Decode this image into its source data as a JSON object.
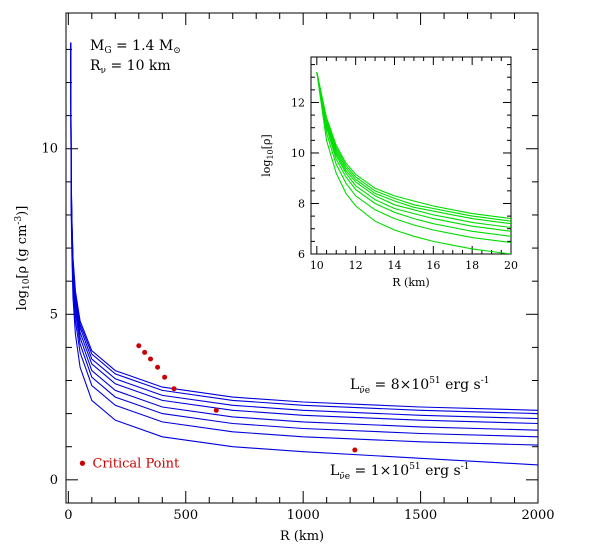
{
  "chart_data": [
    {
      "type": "line",
      "title": "",
      "xlabel": "R (km)",
      "ylabel": "log10[ρ (g cm-3)]",
      "xlim": [
        -10,
        2000
      ],
      "ylim": [
        -0.7,
        14.1
      ],
      "x_ticks": [
        "0",
        "500",
        "1000",
        "1500",
        "2000"
      ],
      "y_ticks": [
        "0",
        "5",
        "10"
      ],
      "x_tick_values": [
        0,
        500,
        1000,
        1500,
        2000
      ],
      "y_tick_values": [
        0,
        5,
        10
      ],
      "line_color": "#0000dd",
      "annotations": {
        "mass": "MG = 1.4 M⊙",
        "radius": "Rν = 10 km",
        "top_lum": "Lν̄e = 8×10⁵¹ erg s⁻¹",
        "bottom_lum": "Lν̄e = 1×10⁵¹ erg s⁻¹",
        "critical_point_label": "Critical Point"
      },
      "legend_marker_color": "#cc0000",
      "series": [
        {
          "x": [
            10,
            12,
            15,
            20,
            30,
            50,
            100,
            200,
            400,
            700,
            1000,
            1500,
            2000
          ],
          "values": [
            13.2,
            9.1,
            7.9,
            6.7,
            5.7,
            4.8,
            3.9,
            3.3,
            2.8,
            2.5,
            2.35,
            2.2,
            2.1
          ]
        },
        {
          "x": [
            10,
            12,
            15,
            20,
            30,
            50,
            100,
            200,
            400,
            700,
            1000,
            1500,
            2000
          ],
          "values": [
            13.2,
            9.0,
            7.8,
            6.6,
            5.6,
            4.7,
            3.8,
            3.2,
            2.7,
            2.4,
            2.25,
            2.1,
            2.0
          ]
        },
        {
          "x": [
            10,
            12,
            15,
            20,
            30,
            50,
            100,
            200,
            400,
            700,
            1000,
            1500,
            2000
          ],
          "values": [
            13.2,
            8.9,
            7.7,
            6.5,
            5.5,
            4.6,
            3.65,
            3.05,
            2.55,
            2.25,
            2.1,
            1.95,
            1.85
          ]
        },
        {
          "x": [
            10,
            12,
            15,
            20,
            30,
            50,
            100,
            200,
            400,
            700,
            1000,
            1500,
            2000
          ],
          "values": [
            13.2,
            8.8,
            7.6,
            6.4,
            5.4,
            4.45,
            3.5,
            2.9,
            2.4,
            2.1,
            1.95,
            1.8,
            1.7
          ]
        },
        {
          "x": [
            10,
            12,
            15,
            20,
            30,
            50,
            100,
            200,
            400,
            700,
            1000,
            1500,
            2000
          ],
          "values": [
            13.2,
            8.7,
            7.5,
            6.3,
            5.25,
            4.3,
            3.3,
            2.7,
            2.2,
            1.9,
            1.75,
            1.6,
            1.5
          ]
        },
        {
          "x": [
            10,
            12,
            15,
            20,
            30,
            50,
            100,
            200,
            400,
            700,
            1000,
            1500,
            2000
          ],
          "values": [
            13.2,
            8.6,
            7.3,
            6.1,
            5.05,
            4.1,
            3.1,
            2.5,
            2.0,
            1.7,
            1.55,
            1.4,
            1.3
          ]
        },
        {
          "x": [
            10,
            12,
            15,
            20,
            30,
            50,
            100,
            200,
            400,
            700,
            1000,
            1500,
            2000
          ],
          "values": [
            13.2,
            8.4,
            7.1,
            5.9,
            4.8,
            3.85,
            2.85,
            2.25,
            1.75,
            1.45,
            1.3,
            1.15,
            1.05
          ]
        },
        {
          "x": [
            10,
            12,
            15,
            20,
            30,
            50,
            100,
            200,
            400,
            700,
            1000,
            1500,
            2000
          ],
          "values": [
            13.2,
            8.1,
            6.8,
            5.5,
            4.4,
            3.4,
            2.4,
            1.8,
            1.3,
            1.0,
            0.85,
            0.65,
            0.45
          ]
        }
      ],
      "critical_points": [
        {
          "x": 300,
          "y": 4.05
        },
        {
          "x": 325,
          "y": 3.85
        },
        {
          "x": 350,
          "y": 3.65
        },
        {
          "x": 380,
          "y": 3.4
        },
        {
          "x": 410,
          "y": 3.1
        },
        {
          "x": 450,
          "y": 2.75
        },
        {
          "x": 630,
          "y": 2.1
        },
        {
          "x": 1220,
          "y": 0.9
        }
      ],
      "legend_marker": {
        "x": 60,
        "y": 0.5
      }
    },
    {
      "type": "line",
      "title": "",
      "xlabel": "R (km)",
      "ylabel": "log10[ρ]",
      "xlim": [
        9.7,
        20
      ],
      "ylim": [
        6,
        13.8
      ],
      "x_ticks": [
        "10",
        "12",
        "14",
        "16",
        "18",
        "20"
      ],
      "y_ticks": [
        "6",
        "8",
        "10",
        "12"
      ],
      "x_tick_values": [
        10,
        12,
        14,
        16,
        18,
        20
      ],
      "y_tick_values": [
        6,
        8,
        10,
        12
      ],
      "line_color": "#00dd00",
      "series": [
        {
          "x": [
            10,
            10.5,
            11,
            11.5,
            12,
            13,
            14,
            15,
            16,
            17,
            18,
            19,
            20
          ],
          "values": [
            13.2,
            11.4,
            10.3,
            9.6,
            9.15,
            8.6,
            8.3,
            8.1,
            7.9,
            7.75,
            7.6,
            7.5,
            7.4
          ]
        },
        {
          "x": [
            10,
            10.5,
            11,
            11.5,
            12,
            13,
            14,
            15,
            16,
            17,
            18,
            19,
            20
          ],
          "values": [
            13.2,
            11.35,
            10.2,
            9.5,
            9.05,
            8.5,
            8.2,
            7.95,
            7.8,
            7.65,
            7.5,
            7.4,
            7.3
          ]
        },
        {
          "x": [
            10,
            10.5,
            11,
            11.5,
            12,
            13,
            14,
            15,
            16,
            17,
            18,
            19,
            20
          ],
          "values": [
            13.2,
            11.3,
            10.1,
            9.4,
            8.95,
            8.4,
            8.1,
            7.85,
            7.7,
            7.55,
            7.4,
            7.3,
            7.2
          ]
        },
        {
          "x": [
            10,
            10.5,
            11,
            11.5,
            12,
            13,
            14,
            15,
            16,
            17,
            18,
            19,
            20
          ],
          "values": [
            13.2,
            11.2,
            10.0,
            9.3,
            8.85,
            8.3,
            7.95,
            7.75,
            7.55,
            7.4,
            7.25,
            7.15,
            7.05
          ]
        },
        {
          "x": [
            10,
            10.5,
            11,
            11.5,
            12,
            13,
            14,
            15,
            16,
            17,
            18,
            19,
            20
          ],
          "values": [
            13.2,
            11.1,
            9.9,
            9.2,
            8.7,
            8.15,
            7.8,
            7.6,
            7.4,
            7.25,
            7.1,
            7.0,
            6.9
          ]
        },
        {
          "x": [
            10,
            10.5,
            11,
            11.5,
            12,
            13,
            14,
            15,
            16,
            17,
            18,
            19,
            20
          ],
          "values": [
            13.2,
            11.0,
            9.75,
            9.05,
            8.55,
            8.0,
            7.65,
            7.4,
            7.2,
            7.05,
            6.9,
            6.8,
            6.7
          ]
        },
        {
          "x": [
            10,
            10.5,
            11,
            11.5,
            12,
            13,
            14,
            15,
            16,
            17,
            18,
            19,
            20
          ],
          "values": [
            13.2,
            10.8,
            9.55,
            8.8,
            8.3,
            7.75,
            7.4,
            7.15,
            6.95,
            6.8,
            6.65,
            6.55,
            6.45
          ]
        },
        {
          "x": [
            10,
            10.5,
            11,
            11.5,
            12,
            13,
            14,
            15,
            16,
            17,
            18,
            19,
            20
          ],
          "values": [
            13.2,
            10.5,
            9.2,
            8.4,
            7.9,
            7.3,
            6.95,
            6.7,
            6.5,
            6.35,
            6.2,
            6.1,
            6.0
          ]
        }
      ]
    }
  ]
}
